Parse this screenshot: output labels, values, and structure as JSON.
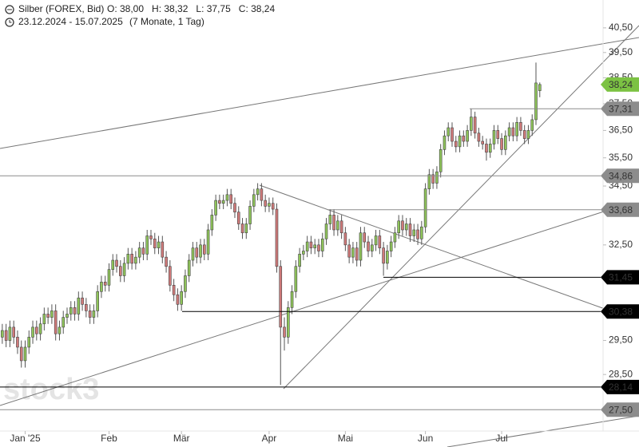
{
  "chart_data": {
    "type": "candlestick",
    "title": "Silber (FOREX, Bid)",
    "ohlc_labels": [
      "O: 38,00",
      "H: 38,32",
      "L: 37,75",
      "C: 38,24"
    ],
    "range": "23.12.2024 - 15.07.2025",
    "period": "(7 Monate, 1 Tag)",
    "watermark": "stock3",
    "log_scale": true,
    "up_color": "#8fc45a",
    "down_color": "#d07a7a",
    "xlim": [
      -0.6,
      157.6
    ],
    "xticks": [
      {
        "value": 6,
        "label": "Jan '25"
      },
      {
        "value": 28,
        "label": "Feb"
      },
      {
        "value": 47,
        "label": "Mär"
      },
      {
        "value": 70,
        "label": "Apr"
      },
      {
        "value": 90,
        "label": "Mai"
      },
      {
        "value": 111,
        "label": "Jun"
      },
      {
        "value": 131,
        "label": "Jul"
      }
    ],
    "ylim": [
      26.48,
      41.66
    ],
    "yticks": [
      {
        "value": 28.5,
        "label": "28,50"
      },
      {
        "value": 29.5,
        "label": "29,50"
      },
      {
        "value": 32.5,
        "label": "32,50"
      },
      {
        "value": 34.5,
        "label": "34,50"
      },
      {
        "value": 35.5,
        "label": "35,50"
      },
      {
        "value": 36.5,
        "label": "36,50"
      },
      {
        "value": 37.5,
        "label": "37,50"
      },
      {
        "value": 38.5,
        "label": "38,50"
      },
      {
        "value": 39.5,
        "label": "39,50"
      },
      {
        "value": 40.5,
        "label": "40,50"
      }
    ],
    "levels": [
      {
        "value": 38.24,
        "label": "38,24",
        "color": "#7cc243",
        "label_color": "#ffffff"
      },
      {
        "value": 37.31,
        "label": "37,31",
        "color": "#8c8c8c",
        "label_color": "#111111"
      },
      {
        "value": 34.86,
        "label": "34,86",
        "color": "#8c8c8c",
        "label_color": "#111111"
      },
      {
        "value": 33.68,
        "label": "33,68",
        "color": "#8c8c8c",
        "label_color": "#111111"
      },
      {
        "value": 31.45,
        "label": "31,45",
        "color": "#000000",
        "label_color": "#ffffff"
      },
      {
        "value": 30.38,
        "label": "30,38",
        "color": "#000000",
        "label_color": "#ffffff"
      },
      {
        "value": 28.14,
        "label": "28,14",
        "color": "#000000",
        "label_color": "#ffffff"
      },
      {
        "value": 27.5,
        "label": "27,50",
        "color": "#8c8c8c",
        "label_color": "#111111"
      }
    ],
    "open": [
      29.6,
      29.8,
      29.5,
      29.9,
      29.6,
      29.3,
      28.9,
      29.3,
      29.6,
      29.9,
      29.7,
      30.0,
      30.3,
      30.2,
      30.4,
      29.7,
      29.9,
      30.2,
      30.3,
      30.5,
      30.3,
      30.8,
      30.6,
      30.4,
      30.2,
      30.4,
      31.0,
      31.3,
      31.2,
      31.7,
      32.0,
      31.8,
      31.5,
      31.9,
      32.2,
      31.9,
      32.1,
      32.4,
      32.2,
      32.8,
      32.7,
      32.4,
      32.6,
      32.1,
      31.8,
      31.2,
      30.9,
      30.6,
      31.0,
      31.5,
      32.0,
      32.4,
      32.1,
      32.5,
      32.2,
      33.0,
      33.5,
      34.0,
      33.9,
      34.0,
      34.2,
      33.9,
      33.6,
      33.2,
      32.9,
      33.2,
      33.8,
      34.2,
      34.4,
      34.0,
      33.8,
      33.9,
      33.7,
      31.8,
      29.9,
      29.6,
      30.5,
      31.0,
      31.8,
      32.2,
      32.3,
      32.6,
      32.4,
      32.5,
      32.3,
      32.7,
      33.2,
      33.5,
      33.0,
      33.3,
      32.9,
      32.5,
      32.1,
      32.4,
      32.0,
      32.9,
      32.6,
      32.3,
      32.5,
      32.8,
      32.4,
      31.9,
      32.3,
      32.6,
      32.9,
      33.3,
      33.0,
      33.2,
      32.8,
      33.0,
      32.7,
      33.1,
      34.4,
      34.9,
      34.6,
      35.0,
      35.8,
      36.3,
      36.6,
      36.1,
      35.9,
      36.3,
      36.1,
      36.5,
      37.0,
      36.4,
      36.1,
      36.0,
      35.7,
      36.0,
      36.5,
      36.2,
      35.8,
      36.3,
      36.6,
      36.3,
      36.8,
      36.5,
      36.2,
      36.5,
      36.9,
      38.0
    ],
    "high": [
      30.0,
      30.0,
      30.1,
      30.1,
      29.8,
      29.5,
      29.5,
      29.8,
      30.1,
      30.1,
      30.2,
      30.5,
      30.5,
      30.6,
      30.6,
      30.1,
      30.4,
      30.5,
      30.7,
      30.7,
      31.0,
      31.0,
      30.8,
      30.6,
      30.6,
      31.2,
      31.5,
      31.5,
      31.9,
      32.2,
      32.2,
      32.0,
      32.1,
      32.4,
      32.4,
      32.3,
      32.6,
      32.6,
      33.0,
      33.0,
      32.9,
      32.8,
      32.8,
      32.3,
      32.0,
      31.4,
      31.1,
      31.2,
      31.7,
      32.2,
      32.6,
      32.6,
      32.7,
      32.7,
      33.2,
      33.7,
      34.2,
      34.2,
      34.2,
      34.4,
      34.4,
      34.1,
      33.8,
      33.4,
      33.4,
      34.0,
      34.4,
      34.6,
      34.6,
      34.2,
      34.1,
      34.1,
      33.9,
      32.0,
      30.2,
      30.7,
      31.2,
      32.0,
      32.4,
      32.5,
      32.8,
      32.8,
      32.7,
      32.7,
      32.9,
      33.4,
      33.7,
      33.7,
      33.5,
      33.5,
      33.1,
      32.7,
      32.6,
      32.6,
      33.1,
      33.1,
      32.8,
      32.7,
      33.0,
      33.0,
      32.6,
      32.5,
      32.8,
      33.1,
      33.5,
      33.5,
      33.4,
      33.4,
      33.2,
      33.2,
      33.3,
      34.6,
      35.1,
      35.1,
      35.2,
      36.0,
      36.5,
      36.8,
      36.8,
      36.3,
      36.5,
      36.5,
      36.7,
      37.31,
      37.2,
      36.6,
      36.3,
      36.2,
      36.2,
      36.7,
      36.7,
      36.4,
      36.5,
      36.8,
      36.8,
      37.0,
      37.0,
      36.7,
      36.7,
      37.1,
      39.1,
      38.32
    ],
    "low": [
      29.4,
      29.3,
      29.3,
      29.4,
      29.1,
      28.7,
      28.7,
      29.1,
      29.4,
      29.5,
      29.5,
      29.8,
      30.0,
      30.0,
      29.5,
      29.5,
      29.7,
      30.0,
      30.1,
      30.1,
      30.1,
      30.4,
      30.2,
      30.0,
      30.0,
      30.2,
      30.8,
      31.0,
      31.0,
      31.5,
      31.6,
      31.3,
      31.3,
      31.7,
      31.7,
      31.7,
      31.9,
      32.0,
      32.0,
      32.5,
      32.2,
      32.2,
      31.9,
      31.6,
      31.0,
      30.7,
      30.4,
      30.4,
      30.8,
      31.3,
      31.8,
      31.9,
      31.9,
      32.0,
      32.0,
      32.8,
      33.3,
      33.7,
      33.7,
      33.8,
      33.7,
      33.4,
      33.0,
      32.7,
      32.7,
      33.0,
      33.6,
      34.0,
      33.8,
      33.6,
      33.6,
      33.5,
      31.6,
      28.2,
      29.2,
      29.4,
      30.3,
      30.8,
      31.6,
      32.0,
      32.1,
      32.2,
      32.2,
      32.1,
      32.1,
      32.5,
      33.0,
      32.8,
      32.8,
      32.7,
      32.3,
      31.9,
      31.9,
      31.8,
      31.8,
      32.4,
      32.1,
      32.1,
      32.3,
      32.2,
      31.5,
      31.7,
      32.1,
      32.4,
      32.7,
      32.8,
      32.8,
      32.6,
      32.6,
      32.5,
      32.5,
      32.9,
      34.2,
      34.4,
      34.4,
      34.8,
      35.6,
      36.1,
      35.9,
      35.7,
      35.7,
      35.9,
      35.9,
      36.3,
      36.2,
      35.9,
      35.8,
      35.4,
      35.5,
      35.8,
      36.0,
      35.6,
      35.6,
      36.1,
      36.1,
      36.1,
      36.3,
      36.0,
      36.0,
      36.3,
      36.7,
      37.75
    ],
    "close": [
      29.8,
      29.5,
      29.9,
      29.6,
      29.3,
      28.9,
      29.3,
      29.6,
      29.9,
      29.7,
      30.0,
      30.3,
      30.2,
      30.4,
      29.7,
      29.9,
      30.2,
      30.3,
      30.5,
      30.3,
      30.8,
      30.6,
      30.4,
      30.2,
      30.4,
      31.0,
      31.3,
      31.2,
      31.7,
      32.0,
      31.8,
      31.5,
      31.9,
      32.2,
      31.9,
      32.1,
      32.4,
      32.2,
      32.8,
      32.7,
      32.4,
      32.6,
      32.1,
      31.8,
      31.2,
      30.9,
      30.6,
      31.0,
      31.5,
      32.0,
      32.4,
      32.1,
      32.5,
      32.2,
      33.0,
      33.5,
      34.0,
      33.9,
      34.0,
      34.2,
      33.9,
      33.6,
      33.2,
      32.9,
      33.2,
      33.8,
      34.2,
      34.4,
      34.0,
      33.8,
      33.9,
      33.7,
      31.8,
      29.9,
      29.6,
      30.5,
      31.0,
      31.8,
      32.2,
      32.3,
      32.6,
      32.4,
      32.5,
      32.3,
      32.7,
      33.2,
      33.5,
      33.0,
      33.3,
      32.9,
      32.5,
      32.1,
      32.4,
      32.0,
      32.9,
      32.6,
      32.3,
      32.5,
      32.8,
      32.4,
      31.9,
      32.3,
      32.6,
      32.9,
      33.3,
      33.0,
      33.2,
      32.8,
      33.0,
      32.7,
      33.1,
      34.4,
      34.9,
      34.6,
      35.0,
      35.8,
      36.3,
      36.6,
      36.1,
      35.9,
      36.3,
      36.1,
      36.5,
      37.0,
      36.4,
      36.1,
      36.0,
      35.7,
      36.0,
      36.5,
      36.2,
      35.8,
      36.3,
      36.6,
      36.3,
      36.8,
      36.5,
      36.2,
      36.5,
      36.9,
      38.3,
      38.24
    ]
  }
}
